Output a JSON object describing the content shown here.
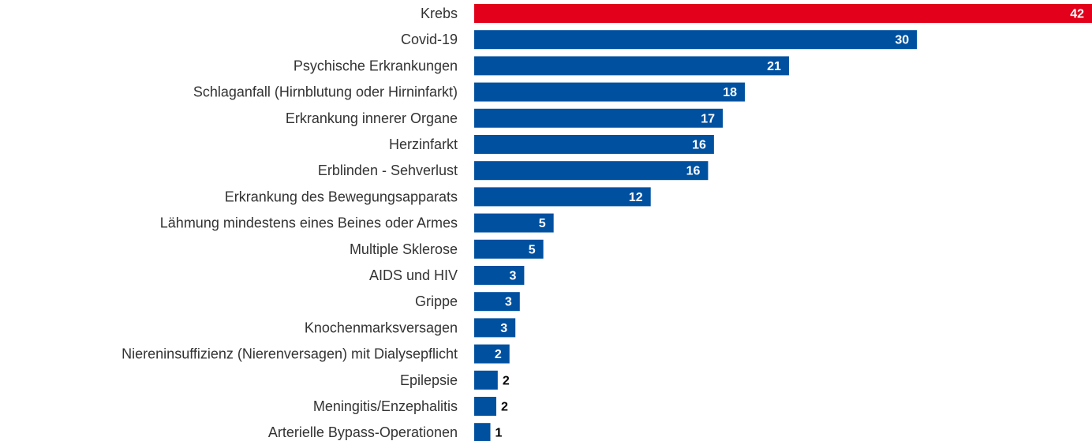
{
  "chart_data": {
    "type": "bar",
    "orientation": "horizontal",
    "categories": [
      "Krebs",
      "Covid-19",
      "Psychische Erkrankungen",
      "Schlaganfall (Hirnblutung oder Hirninfarkt)",
      "Erkrankung innerer Organe",
      "Herzinfarkt",
      "Erblinden - Sehverlust",
      "Erkrankung des Bewegungsapparats",
      "Lähmung mindestens eines Beines oder Armes",
      "Multiple Sklerose",
      "AIDS und HIV",
      "Grippe",
      "Knochenmarksversagen",
      "Niereninsuffizienz (Nierenversagen) mit Dialysepflicht",
      "Epilepsie",
      "Meningitis/Enzephalitis",
      "Arterielle Bypass-Operationen"
    ],
    "values": [
      42.0,
      30.1,
      21.4,
      18.4,
      16.9,
      16.3,
      15.9,
      12.0,
      5.4,
      4.7,
      3.4,
      3.1,
      2.8,
      2.4,
      1.6,
      1.5,
      1.1
    ],
    "value_labels": [
      "42",
      "30",
      "21",
      "18",
      "17",
      "16",
      "16",
      "12",
      "5",
      "5",
      "3",
      "3",
      "3",
      "2",
      "2",
      "2",
      "1"
    ],
    "colors": [
      "#e2001a",
      "#0050a0",
      "#0050a0",
      "#0050a0",
      "#0050a0",
      "#0050a0",
      "#0050a0",
      "#0050a0",
      "#0050a0",
      "#0050a0",
      "#0050a0",
      "#0050a0",
      "#0050a0",
      "#0050a0",
      "#0050a0",
      "#0050a0",
      "#0050a0"
    ]
  }
}
